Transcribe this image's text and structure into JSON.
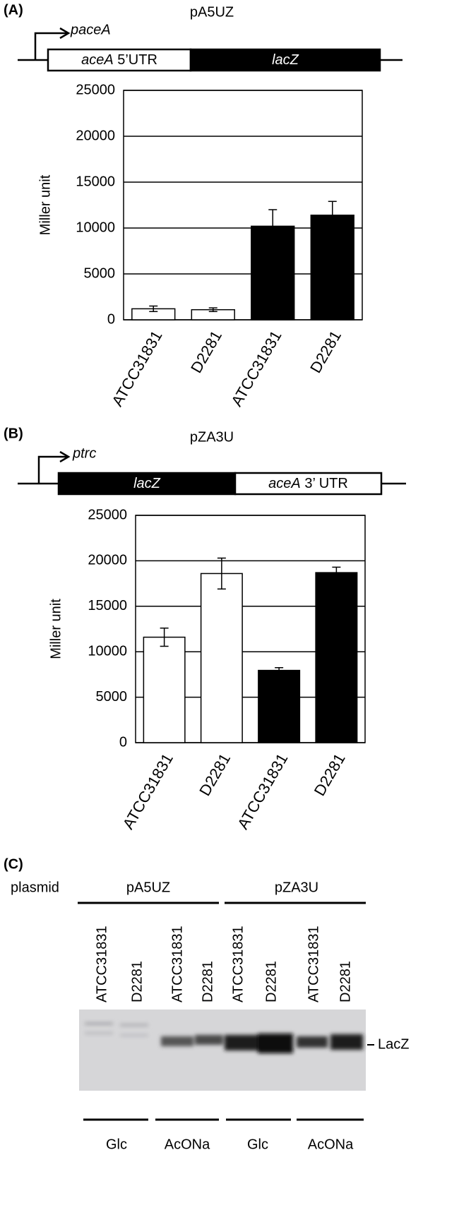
{
  "chart_data": [
    {
      "type": "bar",
      "panel_label": "(A)",
      "title": "pA5UZ",
      "promoter": "paceA",
      "construct": [
        {
          "parts": [
            "aceA",
            " 5’UTR"
          ],
          "color": "#ffffff"
        },
        {
          "parts": [
            "lacZ"
          ],
          "color": "#000000"
        }
      ],
      "ylabel": "Miller unit",
      "categories": [
        "ATCC31831",
        "D2281",
        "ATCC31831",
        "D2281"
      ],
      "values": [
        1200,
        1100,
        10200,
        11400
      ],
      "errors": [
        300,
        200,
        1800,
        1500
      ],
      "colors": [
        "#ffffff",
        "#ffffff",
        "#000000",
        "#000000"
      ],
      "ylim": [
        0,
        25000
      ],
      "yticks": [
        0,
        5000,
        10000,
        15000,
        20000,
        25000
      ],
      "grid": true
    },
    {
      "type": "bar",
      "panel_label": "(B)",
      "title": "pZA3U",
      "promoter": "ptrc",
      "construct": [
        {
          "parts": [
            "lacZ"
          ],
          "color": "#000000"
        },
        {
          "parts": [
            "aceA",
            " 3’ UTR"
          ],
          "color": "#ffffff"
        }
      ],
      "ylabel": "Miller unit",
      "categories": [
        "ATCC31831",
        "D2281",
        "ATCC31831",
        "D2281"
      ],
      "values": [
        11600,
        18600,
        7950,
        18700
      ],
      "errors": [
        1000,
        1700,
        300,
        600
      ],
      "colors": [
        "#ffffff",
        "#ffffff",
        "#000000",
        "#000000"
      ],
      "ylim": [
        0,
        25000
      ],
      "yticks": [
        0,
        5000,
        10000,
        15000,
        20000,
        25000
      ],
      "grid": true
    }
  ],
  "panel_c": {
    "panel_label": "(C)",
    "row_label": "plasmid",
    "plasmids": [
      "pA5UZ",
      "pZA3U"
    ],
    "lanes": [
      "ATCC31831",
      "D2281",
      "ATCC31831",
      "D2281",
      "ATCC31831",
      "D2281",
      "ATCC31831",
      "D2281"
    ],
    "band_label": "LacZ",
    "conditions": [
      "Glc",
      "AcONa",
      "Glc",
      "AcONa"
    ]
  }
}
